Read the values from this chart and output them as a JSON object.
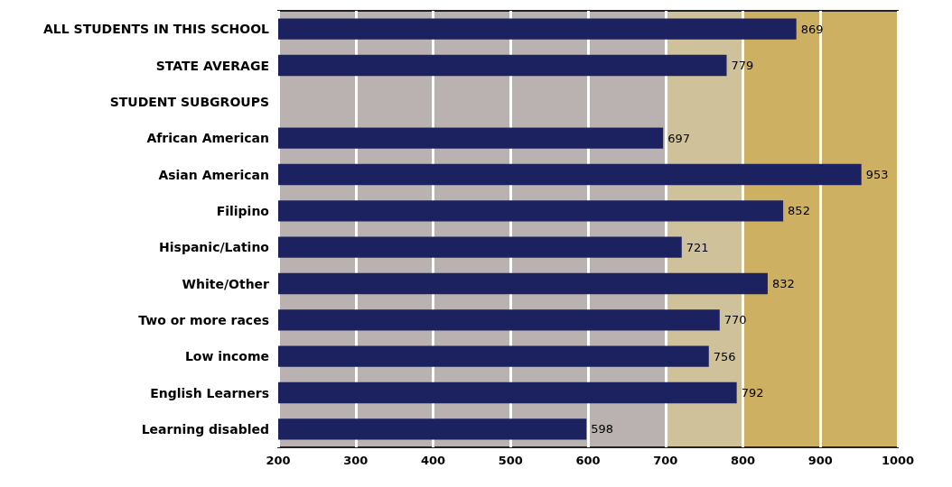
{
  "chart_data": {
    "type": "bar",
    "orientation": "horizontal",
    "categories": [
      "ALL STUDENTS IN THIS SCHOOL",
      "STATE AVERAGE",
      "STUDENT SUBGROUPS",
      "African American",
      "Asian American",
      "Filipino",
      "Hispanic/Latino",
      "White/Other",
      "Two or more races",
      "Low income",
      "English Learners",
      "Learning disabled"
    ],
    "values": [
      869,
      779,
      null,
      697,
      953,
      852,
      721,
      832,
      770,
      756,
      792,
      598
    ],
    "color": "#1c2160",
    "xlim": [
      200,
      1000
    ],
    "xticks": [
      200,
      300,
      400,
      500,
      600,
      700,
      800,
      900,
      1000
    ],
    "grid": "x",
    "data_labels": true,
    "bands": [
      {
        "axis": "x",
        "from": 200,
        "to": 700,
        "color": "#b9b2b0"
      },
      {
        "axis": "x",
        "from": 700,
        "to": 800,
        "color": "#cfc29a"
      },
      {
        "axis": "x",
        "from": 800,
        "to": 1000,
        "color": "#cdb062"
      }
    ]
  }
}
